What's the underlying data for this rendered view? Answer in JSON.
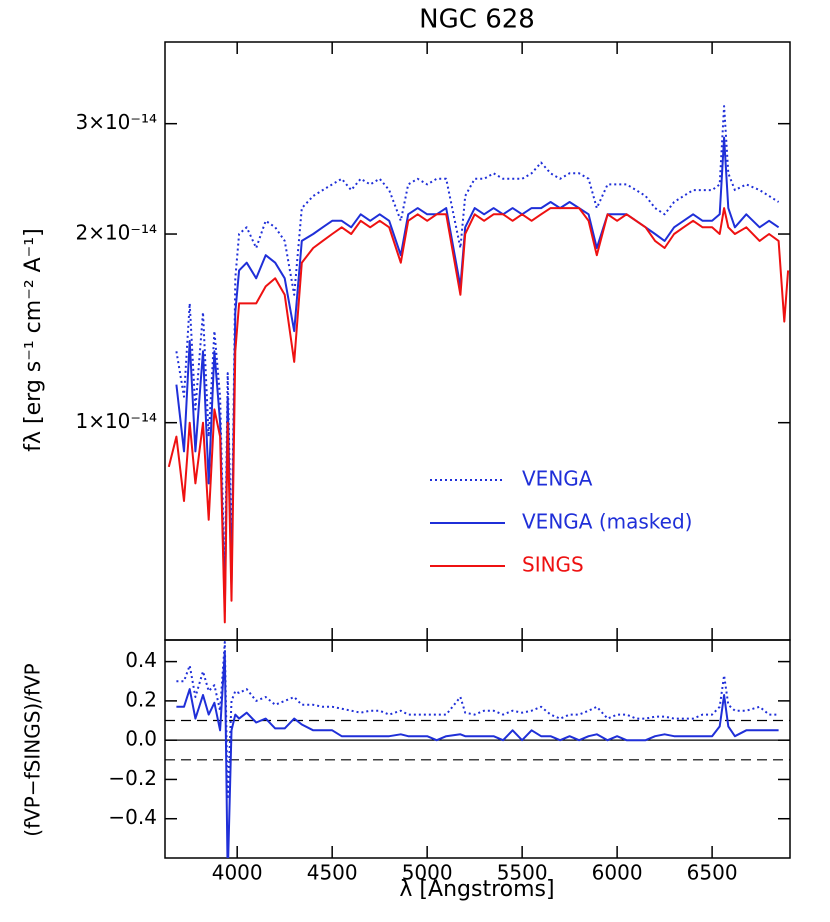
{
  "chart_data": [
    {
      "type": "line",
      "title": "NGC 628",
      "ylabel": "fλ [erg s⁻¹ cm⁻² A⁻¹]",
      "log_y": true,
      "legend": "lower right",
      "x": [
        3640,
        3680,
        3720,
        3750,
        3780,
        3820,
        3850,
        3880,
        3910,
        3935,
        3950,
        3970,
        3990,
        4010,
        4050,
        4100,
        4150,
        4200,
        4250,
        4300,
        4340,
        4400,
        4450,
        4500,
        4550,
        4600,
        4650,
        4700,
        4750,
        4800,
        4861,
        4900,
        4950,
        5000,
        5050,
        5100,
        5175,
        5200,
        5250,
        5300,
        5350,
        5400,
        5450,
        5500,
        5550,
        5600,
        5650,
        5700,
        5750,
        5800,
        5850,
        5893,
        5950,
        6000,
        6050,
        6100,
        6150,
        6200,
        6250,
        6300,
        6350,
        6400,
        6450,
        6500,
        6540,
        6563,
        6585,
        6620,
        6680,
        6750,
        6800,
        6850,
        6880,
        6900
      ],
      "xlim": [
        3620,
        6910
      ],
      "ylim": [
        4.5e-15,
        4.05e-14
      ],
      "yticks": [
        {
          "value": 1e-14,
          "label": "1×10⁻¹⁴"
        },
        {
          "value": 2e-14,
          "label": "2×10⁻¹⁴"
        },
        {
          "value": 3e-14,
          "label": "3×10⁻¹⁴"
        }
      ],
      "series": [
        {
          "name": "VENGA",
          "color": "#1f2fd8",
          "dash": "dotted",
          "values": [
            null,
            1.3e-14,
            1.1e-14,
            1.55e-14,
            1.05e-14,
            1.5e-14,
            9.5e-15,
            1.4e-14,
            1.1e-14,
            5.5e-15,
            1.2e-14,
            6e-15,
            1.7e-14,
            2e-14,
            2.05e-14,
            1.9e-14,
            2.1e-14,
            2.05e-14,
            1.95e-14,
            1.6e-14,
            2.2e-14,
            2.3e-14,
            2.35e-14,
            2.4e-14,
            2.45e-14,
            2.35e-14,
            2.45e-14,
            2.4e-14,
            2.45e-14,
            2.35e-14,
            2.1e-14,
            2.4e-14,
            2.45e-14,
            2.4e-14,
            2.45e-14,
            2.45e-14,
            1.9e-14,
            2.3e-14,
            2.45e-14,
            2.45e-14,
            2.5e-14,
            2.45e-14,
            2.45e-14,
            2.45e-14,
            2.5e-14,
            2.6e-14,
            2.5e-14,
            2.45e-14,
            2.5e-14,
            2.5e-14,
            2.45e-14,
            2.2e-14,
            2.4e-14,
            2.4e-14,
            2.4e-14,
            2.35e-14,
            2.3e-14,
            2.2e-14,
            2.15e-14,
            2.25e-14,
            2.3e-14,
            2.35e-14,
            2.35e-14,
            2.35e-14,
            2.4e-14,
            3.2e-14,
            2.5e-14,
            2.35e-14,
            2.4e-14,
            2.35e-14,
            2.3e-14,
            2.25e-14,
            null,
            null
          ]
        },
        {
          "name": "VENGA (masked)",
          "color": "#1f2fd8",
          "dash": "solid",
          "values": [
            null,
            1.15e-14,
            9e-15,
            1.35e-14,
            9e-15,
            1.3e-14,
            8e-15,
            1.3e-14,
            1e-14,
            5e-15,
            1.1e-14,
            5.5e-15,
            1.5e-14,
            1.75e-14,
            1.8e-14,
            1.7e-14,
            1.85e-14,
            1.8e-14,
            1.7e-14,
            1.4e-14,
            1.95e-14,
            2e-14,
            2.05e-14,
            2.1e-14,
            2.1e-14,
            2.05e-14,
            2.15e-14,
            2.1e-14,
            2.15e-14,
            2.1e-14,
            1.85e-14,
            2.15e-14,
            2.2e-14,
            2.15e-14,
            2.15e-14,
            2.2e-14,
            1.65e-14,
            2.05e-14,
            2.2e-14,
            2.15e-14,
            2.2e-14,
            2.15e-14,
            2.2e-14,
            2.15e-14,
            2.2e-14,
            2.2e-14,
            2.25e-14,
            2.2e-14,
            2.25e-14,
            2.2e-14,
            2.15e-14,
            1.9e-14,
            2.15e-14,
            2.15e-14,
            2.15e-14,
            2.1e-14,
            2.05e-14,
            2e-14,
            1.95e-14,
            2.05e-14,
            2.1e-14,
            2.15e-14,
            2.1e-14,
            2.1e-14,
            2.15e-14,
            2.85e-14,
            2.2e-14,
            2.05e-14,
            2.15e-14,
            2.05e-14,
            2.1e-14,
            2.05e-14,
            null,
            null
          ]
        },
        {
          "name": "SINGS",
          "color": "#ee1111",
          "dash": "solid",
          "values": [
            8.5e-15,
            9.5e-15,
            7.5e-15,
            1e-14,
            8e-15,
            1e-14,
            7e-15,
            1.05e-14,
            9.5e-15,
            4.8e-15,
            1e-14,
            5.2e-15,
            1.3e-14,
            1.55e-14,
            1.55e-14,
            1.55e-14,
            1.65e-14,
            1.7e-14,
            1.6e-14,
            1.25e-14,
            1.8e-14,
            1.9e-14,
            1.95e-14,
            2e-14,
            2.05e-14,
            2e-14,
            2.1e-14,
            2.05e-14,
            2.1e-14,
            2.05e-14,
            1.8e-14,
            2.1e-14,
            2.15e-14,
            2.1e-14,
            2.15e-14,
            2.15e-14,
            1.6e-14,
            2e-14,
            2.15e-14,
            2.1e-14,
            2.15e-14,
            2.15e-14,
            2.1e-14,
            2.15e-14,
            2.1e-14,
            2.15e-14,
            2.2e-14,
            2.2e-14,
            2.2e-14,
            2.2e-14,
            2.1e-14,
            1.85e-14,
            2.15e-14,
            2.1e-14,
            2.15e-14,
            2.1e-14,
            2.05e-14,
            1.95e-14,
            1.9e-14,
            2e-14,
            2.05e-14,
            2.1e-14,
            2.05e-14,
            2.05e-14,
            2e-14,
            2.2e-14,
            2.05e-14,
            2e-14,
            2.05e-14,
            1.95e-14,
            2e-14,
            1.95e-14,
            1.45e-14,
            1.75e-14
          ]
        }
      ]
    },
    {
      "type": "line",
      "xlabel": "λ [Angstroms]",
      "ylabel": "(fVP−fSINGS)/fVP",
      "x": [
        3640,
        3680,
        3720,
        3750,
        3780,
        3820,
        3850,
        3880,
        3910,
        3935,
        3950,
        3970,
        3990,
        4010,
        4050,
        4100,
        4150,
        4200,
        4250,
        4300,
        4340,
        4400,
        4450,
        4500,
        4550,
        4600,
        4650,
        4700,
        4750,
        4800,
        4861,
        4900,
        4950,
        5000,
        5050,
        5100,
        5175,
        5200,
        5250,
        5300,
        5350,
        5400,
        5450,
        5500,
        5550,
        5600,
        5650,
        5700,
        5750,
        5800,
        5850,
        5893,
        5950,
        6000,
        6050,
        6100,
        6150,
        6200,
        6250,
        6300,
        6350,
        6400,
        6450,
        6500,
        6540,
        6563,
        6585,
        6620,
        6680,
        6750,
        6800,
        6850,
        6880,
        6900
      ],
      "xlim": [
        3620,
        6910
      ],
      "xticks": [
        4000,
        4500,
        5000,
        5500,
        6000,
        6500
      ],
      "ylim": [
        -0.6,
        0.51
      ],
      "yticks": [
        {
          "value": -0.4,
          "label": "−0.4"
        },
        {
          "value": -0.2,
          "label": "−0.2"
        },
        {
          "value": 0,
          "label": "0.0"
        },
        0.2,
        0.4
      ],
      "hlines": [
        {
          "value": 0,
          "dash": "solid"
        },
        {
          "value": 0.1,
          "dash": "dashed"
        },
        {
          "value": -0.1,
          "dash": "dashed"
        }
      ],
      "series": [
        {
          "color": "#1f2fd8",
          "dash": "dotted",
          "values": [
            null,
            0.3,
            0.3,
            0.38,
            0.22,
            0.35,
            0.25,
            0.28,
            0.15,
            0.5,
            -0.3,
            0.2,
            0.25,
            0.24,
            0.26,
            0.2,
            0.22,
            0.18,
            0.2,
            0.22,
            0.18,
            0.18,
            0.17,
            0.17,
            0.16,
            0.15,
            0.14,
            0.15,
            0.15,
            0.13,
            0.15,
            0.13,
            0.13,
            0.13,
            0.13,
            0.13,
            0.22,
            0.14,
            0.13,
            0.15,
            0.15,
            0.13,
            0.15,
            0.14,
            0.15,
            0.17,
            0.13,
            0.11,
            0.13,
            0.13,
            0.15,
            0.17,
            0.11,
            0.13,
            0.13,
            0.11,
            0.11,
            0.12,
            0.12,
            0.11,
            0.11,
            0.11,
            0.13,
            0.13,
            0.17,
            0.33,
            0.18,
            0.15,
            0.15,
            0.17,
            0.13,
            0.13,
            null,
            null
          ]
        },
        {
          "color": "#1f2fd8",
          "dash": "solid",
          "values": [
            null,
            0.17,
            0.17,
            0.26,
            0.11,
            0.23,
            0.13,
            0.19,
            0.05,
            0.45,
            -0.7,
            0.05,
            0.13,
            0.11,
            0.14,
            0.09,
            0.11,
            0.06,
            0.06,
            0.11,
            0.08,
            0.05,
            0.05,
            0.05,
            0.02,
            0.02,
            0.02,
            0.02,
            0.02,
            0.02,
            0.03,
            0.02,
            0.02,
            0.02,
            0.0,
            0.02,
            0.03,
            0.02,
            0.02,
            0.02,
            0.02,
            0.0,
            0.05,
            0.0,
            0.05,
            0.02,
            0.02,
            0.0,
            0.02,
            0.0,
            0.02,
            0.03,
            0.0,
            0.02,
            0.0,
            0.0,
            0.0,
            0.02,
            0.03,
            0.02,
            0.02,
            0.02,
            0.02,
            0.02,
            0.07,
            0.23,
            0.07,
            0.02,
            0.05,
            0.05,
            0.05,
            0.05,
            null,
            null
          ]
        }
      ]
    }
  ]
}
